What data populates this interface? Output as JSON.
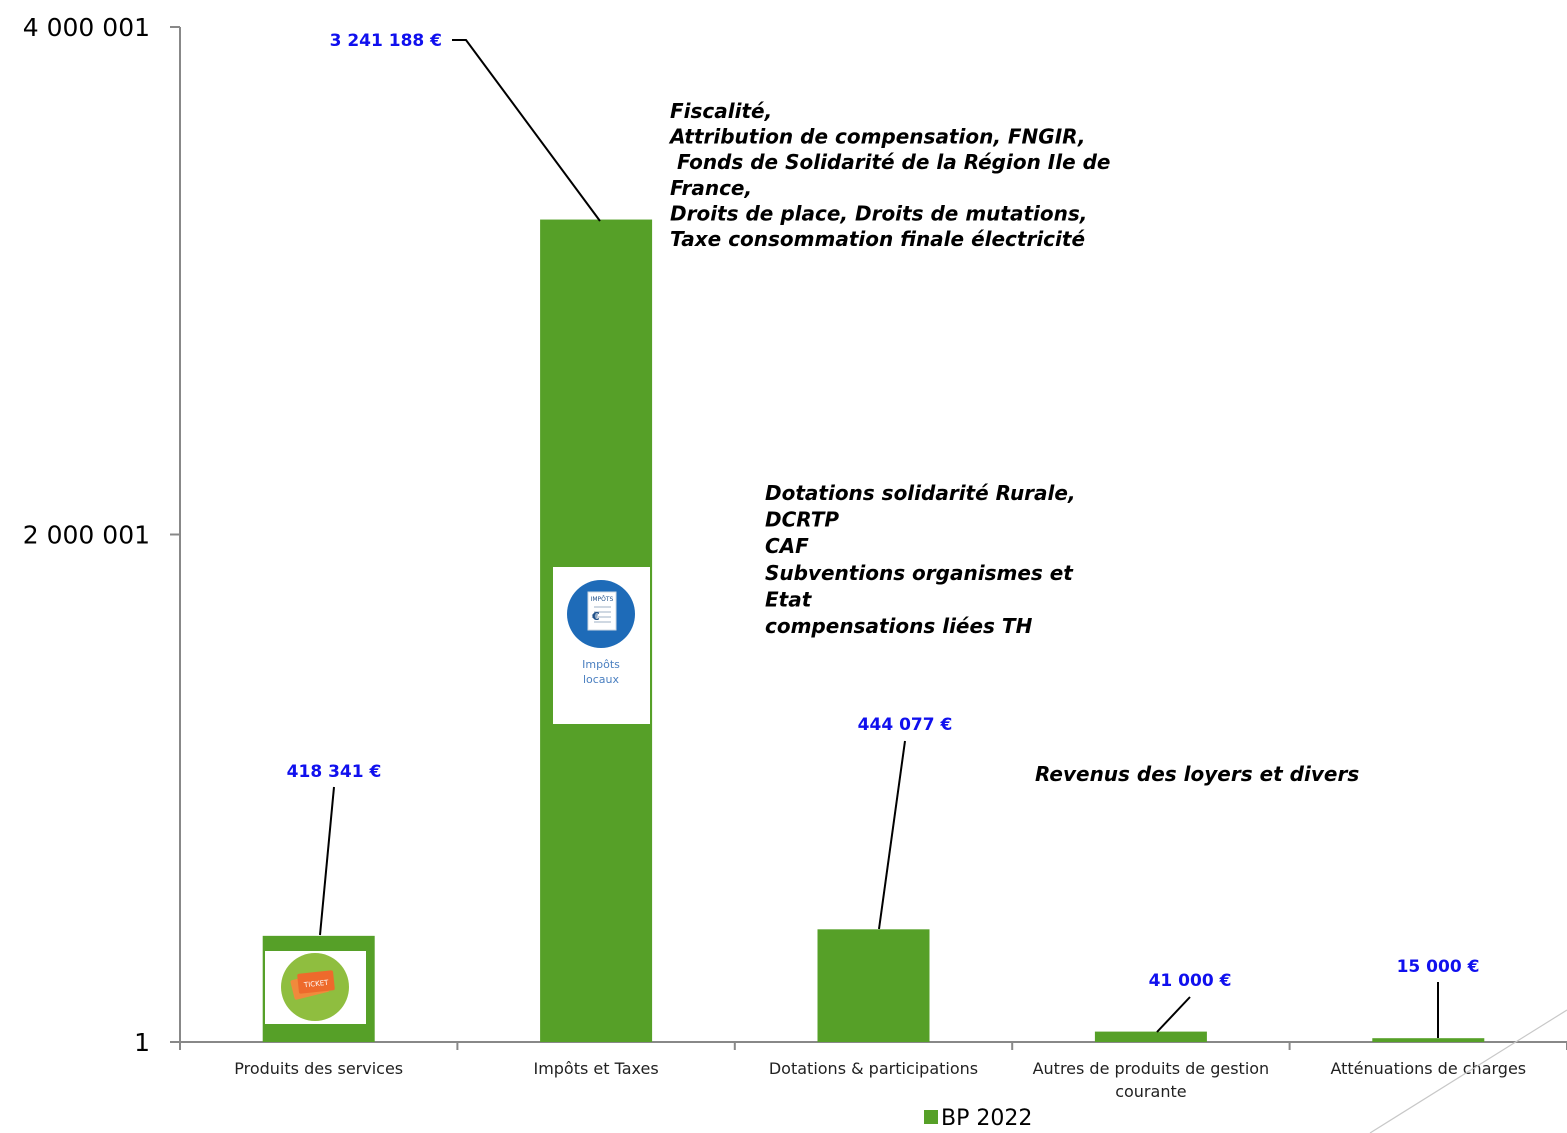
{
  "chart_data": {
    "type": "bar",
    "categories": [
      "Produits des services",
      "Impôts et Taxes",
      "Dotations & participations",
      "Autres de produits de gestion courante",
      "Atténuations de charges"
    ],
    "categories_display": [
      [
        "Produits des services"
      ],
      [
        "Impôts et Taxes"
      ],
      [
        "Dotations & participations"
      ],
      [
        "Autres de produits de gestion",
        "courante"
      ],
      [
        "Atténuations de charges"
      ]
    ],
    "series": [
      {
        "name": "BP 2022",
        "values": [
          418341,
          3241188,
          444077,
          41000,
          15000
        ],
        "color": "#56a028"
      }
    ],
    "data_labels": [
      "418 341 €",
      "3 241 188 €",
      "444 077 €",
      "41 000 €",
      "15 000 €"
    ],
    "yticks": [
      {
        "value": 1,
        "label": "1"
      },
      {
        "value": 2000001,
        "label": "2 000 001"
      },
      {
        "value": 4000001,
        "label": "4 000 001"
      }
    ],
    "ylim": [
      1,
      4000001
    ],
    "legend_position": "bottom",
    "annotations": [
      {
        "name": "fiscalite",
        "lines": [
          "Fiscalité,",
          "Attribution de compensation, FNGIR,",
          " Fonds de Solidarité de la Région Ile de",
          "France,",
          "Droits de place, Droits de mutations,",
          "Taxe consommation finale électricité"
        ]
      },
      {
        "name": "dotations",
        "lines": [
          "Dotations solidarité Rurale,",
          "DCRTP",
          "CAF",
          "Subventions   organismes   et",
          "Etat",
          "compensations liées TH"
        ]
      },
      {
        "name": "revenus",
        "lines": [
          "Revenus des loyers et divers"
        ]
      }
    ],
    "icons": [
      {
        "name": "ticket-icon",
        "category": "Produits des services",
        "text": "TICKET"
      },
      {
        "name": "tax-document-icon",
        "category": "Impôts et Taxes",
        "text": "IMPÔTS",
        "caption": [
          "Impôts",
          "locaux"
        ]
      }
    ]
  }
}
